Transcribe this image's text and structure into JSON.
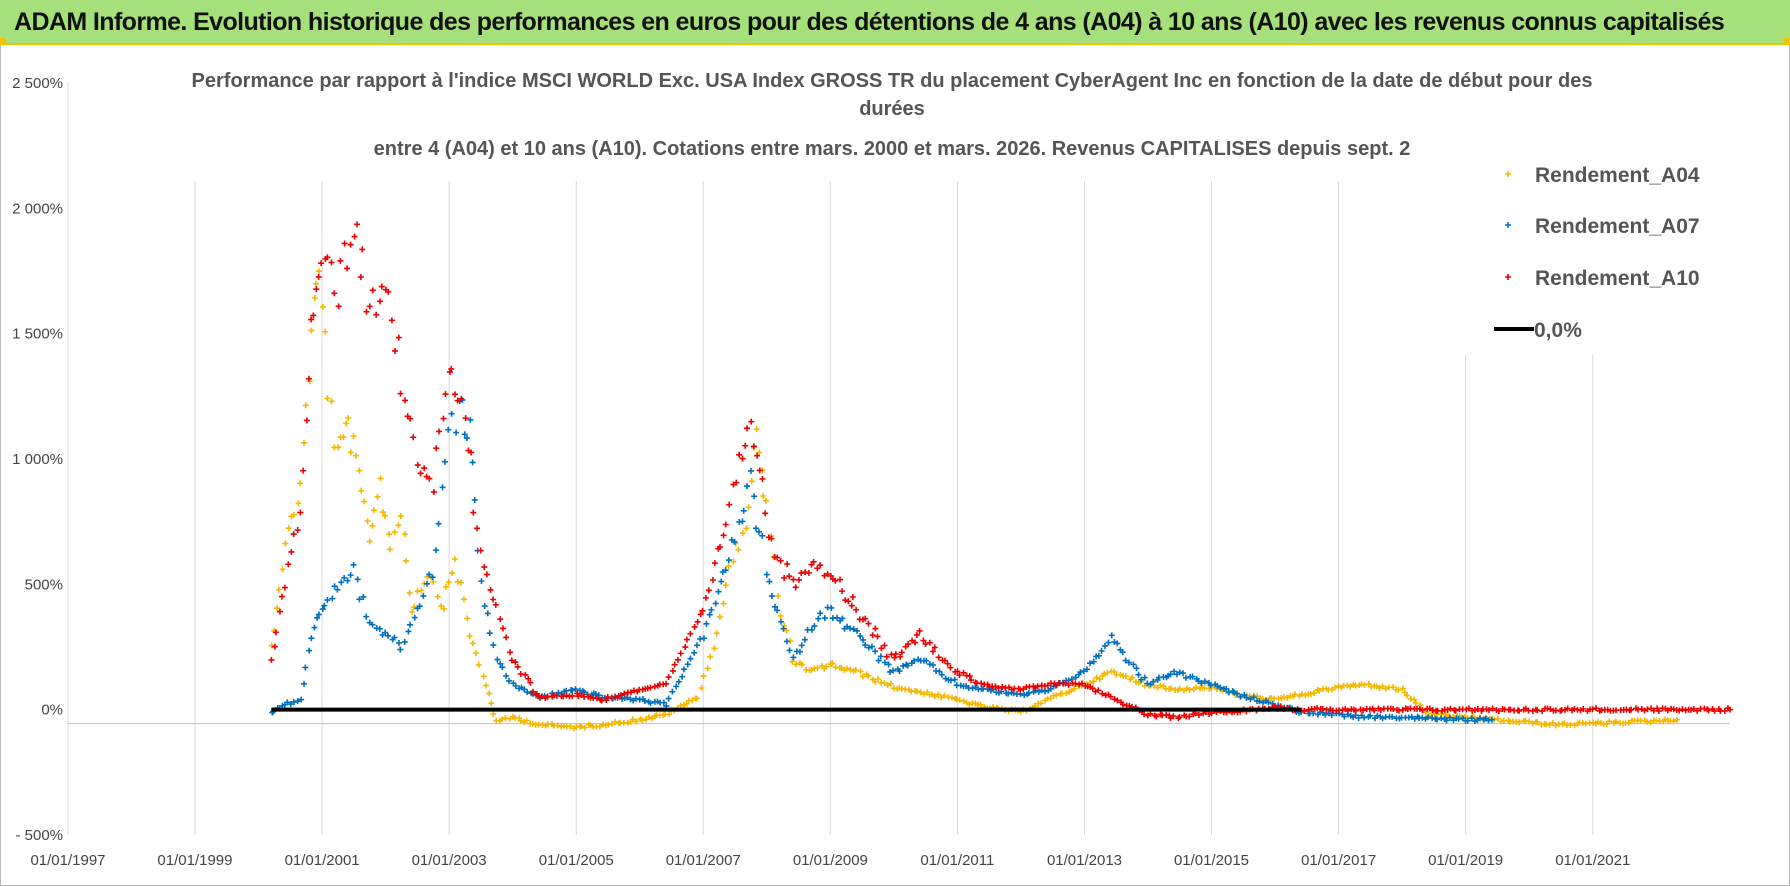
{
  "banner": {
    "title": "ADAM Informe. Evolution historique des performances en euros pour des détentions de 4 ans (A04) à 10 ans (A10) avec les revenus connus capitalisés"
  },
  "colors": {
    "banner_bg": "#a6e07a",
    "banner_border": "#f2c200",
    "A04": "#f5b800",
    "A07": "#0070c0",
    "A10": "#ee0000",
    "zero_line": "#000000"
  },
  "chart_data": {
    "type": "scatter",
    "title_lines": [
      "Performance par rapport à l'indice MSCI WORLD Exc. USA Index GROSS TR  du placement CyberAgent Inc en fonction de la date de début pour des",
      "durées",
      "entre 4 (A04) et 10 ans (A10). Cotations entre mars. 2000 et mars. 2026. Revenus CAPITALISES depuis sept. 2"
    ],
    "xlabel": "",
    "ylabel": "",
    "x_ticks": [
      "01/01/1997",
      "01/01/1999",
      "01/01/2001",
      "01/01/2003",
      "01/01/2005",
      "01/01/2007",
      "01/01/2009",
      "01/01/2011",
      "01/01/2013",
      "01/01/2015",
      "01/01/2017",
      "01/01/2019",
      "01/01/2021"
    ],
    "y_ticks": [
      "- 500%",
      "0%",
      "500%",
      "1 000%",
      "1 500%",
      "2 000%",
      "2 500%"
    ],
    "xlim": [
      "1997-01-01",
      "2023-03-01"
    ],
    "ylim": [
      -500,
      2500
    ],
    "grid": "vertical",
    "legend_position": "right",
    "legend": [
      "Rendement_A04",
      "Rendement_A07",
      "Rendement_A10",
      "0,0%"
    ],
    "series": [
      {
        "name": "Rendement_A04",
        "color": "#f5b800",
        "points": [
          [
            "2000-03-15",
            250
          ],
          [
            "2000-06-01",
            650
          ],
          [
            "2000-09-01",
            900
          ],
          [
            "2000-11-01",
            1500
          ],
          [
            "2000-12-15",
            1750
          ],
          [
            "2001-02-01",
            1300
          ],
          [
            "2001-04-01",
            1000
          ],
          [
            "2001-06-01",
            1150
          ],
          [
            "2001-08-01",
            900
          ],
          [
            "2001-10-01",
            700
          ],
          [
            "2001-12-01",
            900
          ],
          [
            "2002-02-01",
            650
          ],
          [
            "2002-04-01",
            800
          ],
          [
            "2002-06-01",
            400
          ],
          [
            "2002-09-01",
            550
          ],
          [
            "2002-12-01",
            420
          ],
          [
            "2003-02-01",
            600
          ],
          [
            "2003-05-01",
            300
          ],
          [
            "2003-08-01",
            100
          ],
          [
            "2003-10-01",
            -50
          ],
          [
            "2004-01-01",
            -30
          ],
          [
            "2004-06-01",
            -60
          ],
          [
            "2005-01-01",
            -70
          ],
          [
            "2005-06-01",
            -60
          ],
          [
            "2006-01-01",
            -40
          ],
          [
            "2006-06-01",
            -20
          ],
          [
            "2006-12-01",
            50
          ],
          [
            "2007-03-01",
            250
          ],
          [
            "2007-06-01",
            550
          ],
          [
            "2007-09-01",
            750
          ],
          [
            "2007-11-01",
            1100
          ],
          [
            "2008-01-01",
            800
          ],
          [
            "2008-03-01",
            450
          ],
          [
            "2008-06-01",
            200
          ],
          [
            "2008-09-01",
            150
          ],
          [
            "2009-01-01",
            180
          ],
          [
            "2009-06-01",
            150
          ],
          [
            "2010-01-01",
            90
          ],
          [
            "2010-06-01",
            70
          ],
          [
            "2011-01-01",
            40
          ],
          [
            "2011-06-01",
            10
          ],
          [
            "2012-01-01",
            -10
          ],
          [
            "2012-06-01",
            40
          ],
          [
            "2013-01-01",
            100
          ],
          [
            "2013-06-01",
            150
          ],
          [
            "2014-01-01",
            100
          ],
          [
            "2014-06-01",
            80
          ],
          [
            "2015-01-01",
            90
          ],
          [
            "2015-06-01",
            60
          ],
          [
            "2016-01-01",
            40
          ],
          [
            "2016-06-01",
            60
          ],
          [
            "2017-01-01",
            90
          ],
          [
            "2017-06-01",
            100
          ],
          [
            "2018-01-01",
            80
          ],
          [
            "2018-06-01",
            -20
          ],
          [
            "2019-01-01",
            -30
          ],
          [
            "2019-06-01",
            -40
          ],
          [
            "2020-01-01",
            -50
          ],
          [
            "2020-06-01",
            -60
          ],
          [
            "2021-01-01",
            -55
          ],
          [
            "2021-06-01",
            -50
          ],
          [
            "2022-01-01",
            -45
          ],
          [
            "2022-05-01",
            -40
          ]
        ]
      },
      {
        "name": "Rendement_A07",
        "color": "#0070c0",
        "points": [
          [
            "2000-03-15",
            -10
          ],
          [
            "2000-06-01",
            20
          ],
          [
            "2000-09-01",
            40
          ],
          [
            "2000-11-01",
            300
          ],
          [
            "2001-01-01",
            400
          ],
          [
            "2001-04-01",
            500
          ],
          [
            "2001-07-01",
            550
          ],
          [
            "2001-10-01",
            350
          ],
          [
            "2002-01-01",
            300
          ],
          [
            "2002-04-01",
            250
          ],
          [
            "2002-07-01",
            400
          ],
          [
            "2002-10-01",
            550
          ],
          [
            "2003-01-01",
            1100
          ],
          [
            "2003-03-01",
            1200
          ],
          [
            "2003-05-01",
            1100
          ],
          [
            "2003-07-01",
            500
          ],
          [
            "2003-10-01",
            200
          ],
          [
            "2004-01-01",
            100
          ],
          [
            "2004-06-01",
            50
          ],
          [
            "2005-01-01",
            80
          ],
          [
            "2005-06-01",
            50
          ],
          [
            "2006-01-01",
            40
          ],
          [
            "2006-06-01",
            20
          ],
          [
            "2007-01-01",
            300
          ],
          [
            "2007-06-01",
            600
          ],
          [
            "2007-10-01",
            900
          ],
          [
            "2008-02-01",
            450
          ],
          [
            "2008-06-01",
            200
          ],
          [
            "2008-10-01",
            350
          ],
          [
            "2009-01-01",
            400
          ],
          [
            "2009-06-01",
            300
          ],
          [
            "2010-01-01",
            150
          ],
          [
            "2010-06-01",
            200
          ],
          [
            "2011-01-01",
            100
          ],
          [
            "2011-06-01",
            80
          ],
          [
            "2012-01-01",
            60
          ],
          [
            "2012-06-01",
            80
          ],
          [
            "2013-01-01",
            150
          ],
          [
            "2013-06-01",
            280
          ],
          [
            "2014-01-01",
            100
          ],
          [
            "2014-06-01",
            150
          ],
          [
            "2015-01-01",
            100
          ],
          [
            "2015-06-01",
            60
          ],
          [
            "2016-01-01",
            20
          ],
          [
            "2016-06-01",
            -10
          ],
          [
            "2017-01-01",
            -20
          ],
          [
            "2017-06-01",
            -30
          ],
          [
            "2018-01-01",
            -30
          ],
          [
            "2018-06-01",
            -35
          ],
          [
            "2019-01-01",
            -40
          ],
          [
            "2019-06-01",
            -40
          ]
        ]
      },
      {
        "name": "Rendement_A10",
        "color": "#ee0000",
        "points": [
          [
            "2000-03-15",
            200
          ],
          [
            "2000-06-01",
            500
          ],
          [
            "2000-09-01",
            800
          ],
          [
            "2000-11-01",
            1500
          ],
          [
            "2001-01-01",
            1800
          ],
          [
            "2001-04-01",
            1700
          ],
          [
            "2001-07-01",
            1950
          ],
          [
            "2001-10-01",
            1600
          ],
          [
            "2002-01-01",
            1750
          ],
          [
            "2002-04-01",
            1300
          ],
          [
            "2002-07-01",
            1000
          ],
          [
            "2002-10-01",
            900
          ],
          [
            "2003-01-01",
            1400
          ],
          [
            "2003-04-01",
            1200
          ],
          [
            "2003-07-01",
            600
          ],
          [
            "2003-10-01",
            400
          ],
          [
            "2004-01-01",
            200
          ],
          [
            "2004-06-01",
            50
          ],
          [
            "2005-01-01",
            60
          ],
          [
            "2005-06-01",
            40
          ],
          [
            "2006-01-01",
            80
          ],
          [
            "2006-06-01",
            100
          ],
          [
            "2007-01-01",
            400
          ],
          [
            "2007-06-01",
            800
          ],
          [
            "2007-10-01",
            1200
          ],
          [
            "2008-02-01",
            650
          ],
          [
            "2008-06-01",
            500
          ],
          [
            "2008-10-01",
            600
          ],
          [
            "2009-01-01",
            550
          ],
          [
            "2009-06-01",
            400
          ],
          [
            "2010-01-01",
            200
          ],
          [
            "2010-06-01",
            300
          ],
          [
            "2011-01-01",
            150
          ],
          [
            "2011-06-01",
            100
          ],
          [
            "2012-01-01",
            80
          ],
          [
            "2012-06-01",
            100
          ],
          [
            "2013-01-01",
            100
          ],
          [
            "2013-06-01",
            50
          ],
          [
            "2014-01-01",
            -20
          ],
          [
            "2014-06-01",
            -30
          ],
          [
            "2015-01-01",
            -10
          ],
          [
            "2015-06-01",
            -5
          ],
          [
            "2016-01-01",
            10
          ],
          [
            "2016-06-01",
            0
          ],
          [
            "2017-01-01",
            0
          ],
          [
            "2018-01-01",
            0
          ],
          [
            "2019-01-01",
            0
          ],
          [
            "2020-01-01",
            0
          ],
          [
            "2021-01-01",
            0
          ],
          [
            "2022-01-01",
            0
          ],
          [
            "2023-03-01",
            0
          ]
        ]
      }
    ],
    "reference_line": {
      "name": "0,0%",
      "y": 0,
      "x_start": "2000-03-15",
      "x_end": "2016-06-01"
    }
  }
}
